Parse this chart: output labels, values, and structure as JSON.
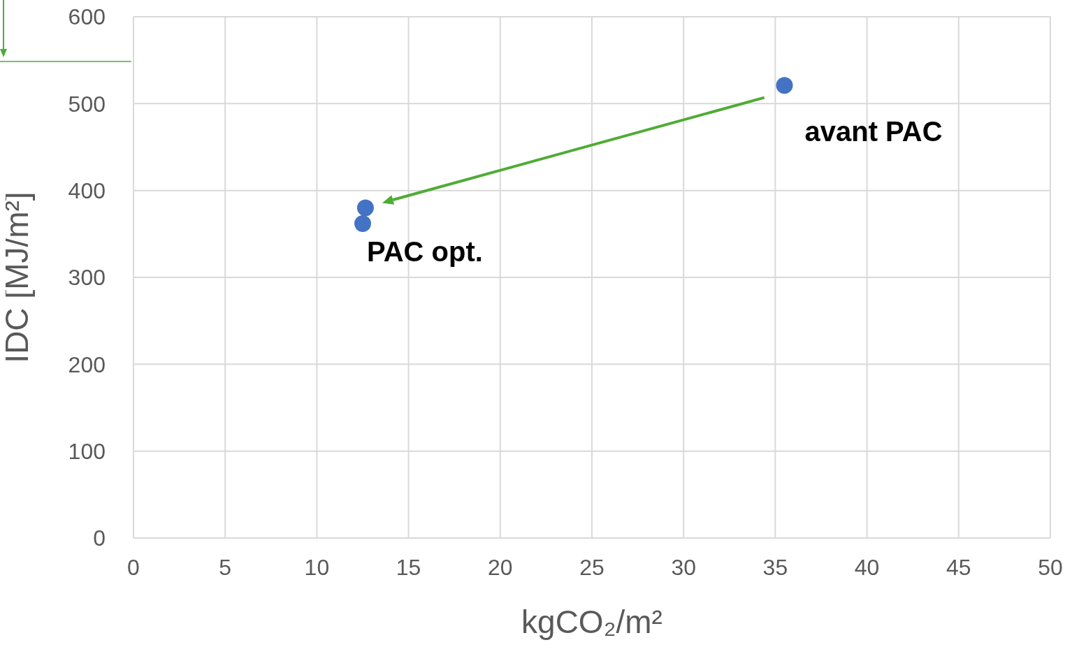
{
  "chart_data": {
    "type": "scatter",
    "xlabel": "kgCO₂/m²",
    "ylabel": "IDC [MJ/m²]",
    "x": [
      35.5,
      12.65,
      12.5
    ],
    "series": [
      {
        "color": "#4472c4",
        "values": [
          521,
          380,
          362
        ]
      }
    ],
    "xlim": [
      0,
      50
    ],
    "xticks": [
      0,
      5,
      10,
      15,
      20,
      25,
      30,
      35,
      40,
      45,
      50
    ],
    "ylim": [
      0,
      600
    ],
    "yticks": [
      0,
      100,
      200,
      300,
      400,
      500,
      600
    ],
    "grid": true,
    "marker": "circle",
    "legend": false,
    "annotations": [
      {
        "text": "avant PAC",
        "x": 35.5,
        "y": 521
      },
      {
        "text": "PAC opt.",
        "x": 12.5,
        "y": 362
      }
    ]
  }
}
